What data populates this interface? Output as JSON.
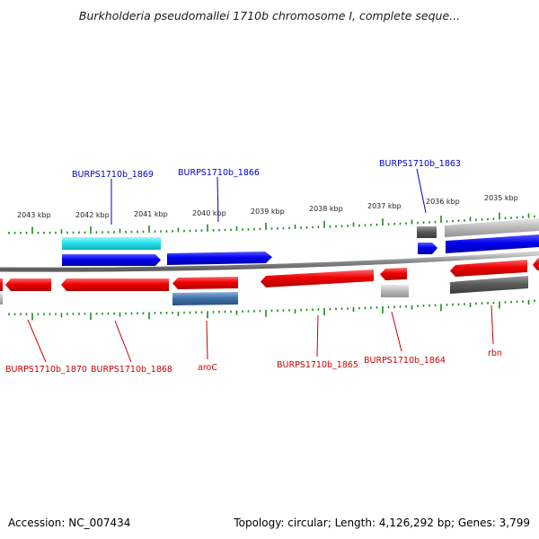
{
  "title": "Burkholderia pseudomallei 1710b chromosome I, complete seque...",
  "footer": {
    "accession_label": "Accession:",
    "accession": "NC_007434",
    "topology_label": "Topology:",
    "topology": "circular",
    "length_label": "Length:",
    "length": "4,126,292 bp",
    "genes_label": "Genes:",
    "genes": "3,799"
  },
  "ticks": [
    "2043 kbp",
    "2042 kbp",
    "2041 kbp",
    "2040 kbp",
    "2039 kbp",
    "2038 kbp",
    "2037 kbp",
    "2036 kbp",
    "2035 kbp"
  ],
  "gene_labels_top": [
    "BURPS1710b_1869",
    "BURPS1710b_1866",
    "BURPS1710b_1863"
  ],
  "gene_labels_bottom": [
    "BURPS1710b_1870",
    "BURPS1710b_1868",
    "aroC",
    "BURPS1710b_1865",
    "BURPS1710b_1864",
    "rbn"
  ],
  "colors": {
    "top_label": "#0000cc",
    "bottom_label": "#cc0000",
    "gene_red": "#ee0000",
    "gene_blue": "#0000ee",
    "gene_cyan": "#22e5ee",
    "gene_steel": "#3f74ad",
    "gene_light_gray": "#bdbdbd",
    "gene_dark_gray": "#5c5c5c",
    "backbone": "#8a8a8a",
    "tick_green": "#1e8c1e"
  }
}
